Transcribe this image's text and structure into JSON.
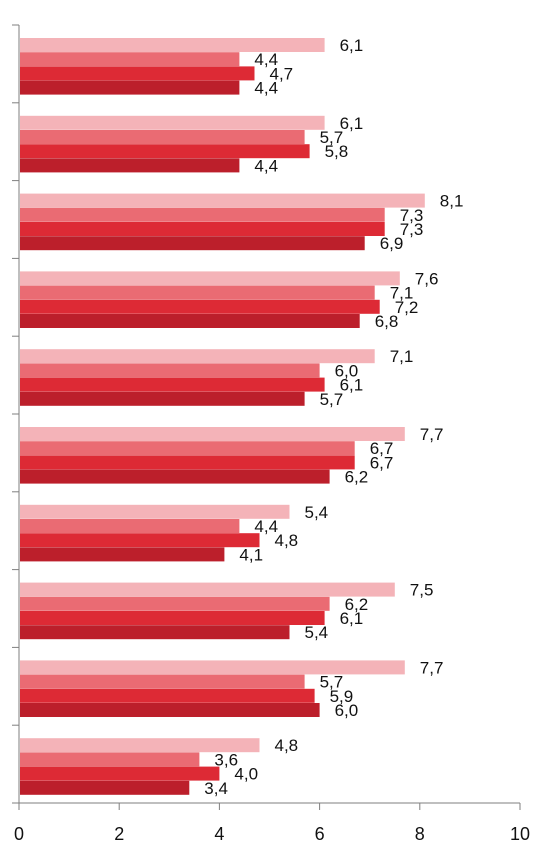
{
  "chart_data": {
    "type": "bar",
    "orientation": "horizontal",
    "title": "",
    "xlabel": "",
    "ylabel": "",
    "xlim": [
      0,
      10
    ],
    "x_ticks": [
      "0",
      "2",
      "4",
      "6",
      "8",
      "10"
    ],
    "grid": false,
    "legend": "none",
    "group_count": 10,
    "series": [
      {
        "color": "#f4b3b8",
        "values": [
          6.1,
          6.1,
          8.1,
          7.6,
          7.1,
          7.7,
          5.4,
          7.5,
          7.7,
          4.8
        ],
        "labels": [
          "6,1",
          "6,1",
          "8,1",
          "7,6",
          "7,1",
          "7,7",
          "5,4",
          "7,5",
          "7,7",
          "4,8"
        ]
      },
      {
        "color": "#ea6b73",
        "values": [
          4.4,
          5.7,
          7.3,
          7.1,
          6.0,
          6.7,
          4.4,
          6.2,
          5.7,
          3.6
        ],
        "labels": [
          "4,4",
          "5,7",
          "7,3",
          "7,1",
          "6,0",
          "6,7",
          "4,4",
          "6,2",
          "5,7",
          "3,6"
        ]
      },
      {
        "color": "#dd2a35",
        "values": [
          4.7,
          5.8,
          7.3,
          7.2,
          6.1,
          6.7,
          4.8,
          6.1,
          5.9,
          4.0
        ],
        "labels": [
          "4,7",
          "5,8",
          "7,3",
          "7,2",
          "6,1",
          "6,7",
          "4,8",
          "6,1",
          "5,9",
          "4,0"
        ]
      },
      {
        "color": "#bc1f2b",
        "values": [
          4.4,
          4.4,
          6.9,
          6.8,
          5.7,
          6.2,
          4.1,
          5.4,
          6.0,
          3.4
        ],
        "labels": [
          "4,4",
          "4,4",
          "6,9",
          "6,8",
          "5,7",
          "6,2",
          "4,1",
          "5,4",
          "6,0",
          "3,4"
        ]
      }
    ]
  }
}
